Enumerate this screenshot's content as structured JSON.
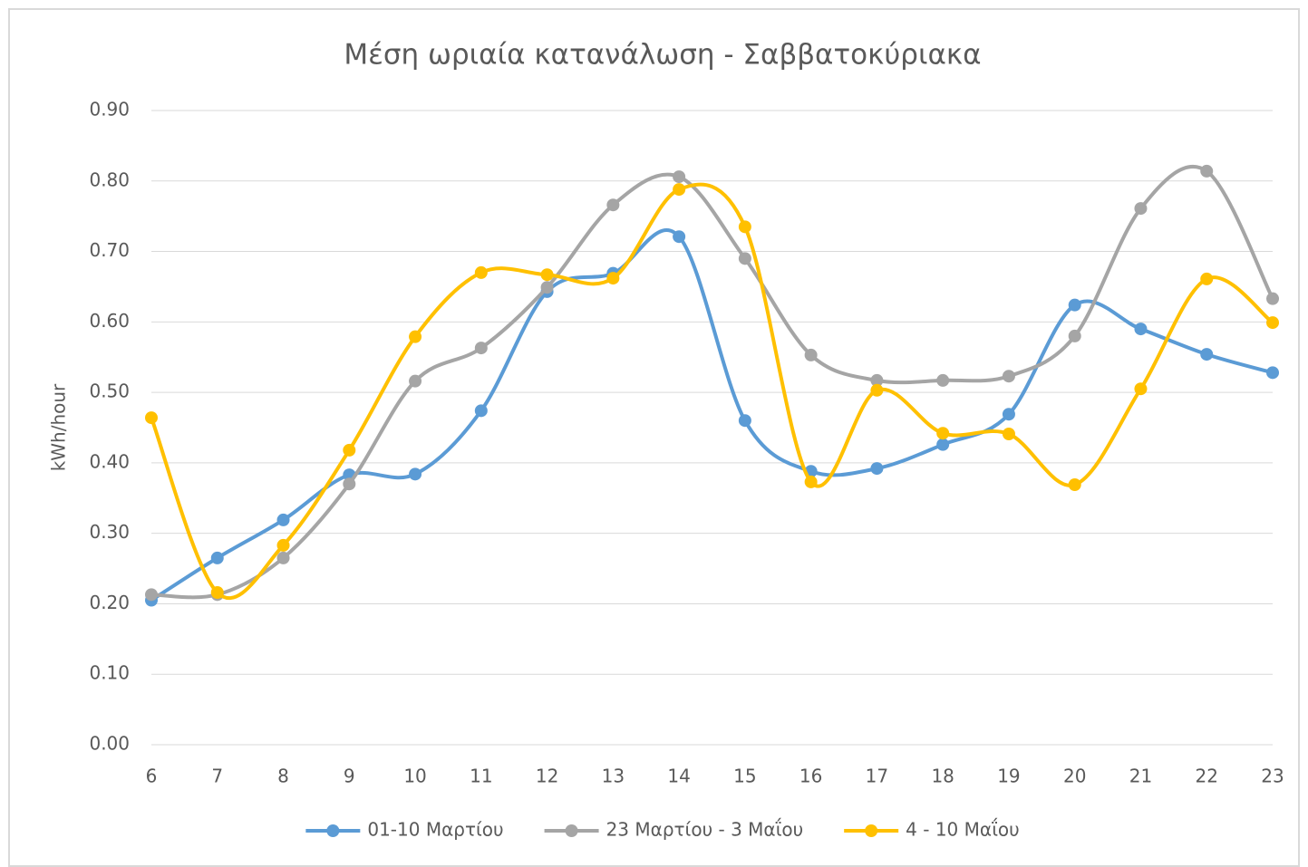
{
  "chart_data": {
    "type": "line",
    "title": "Μέση ωριαία κατανάλωση  - Σαββατοκύριακα",
    "y_label": "kWh/hour",
    "x": [
      6,
      7,
      8,
      9,
      10,
      11,
      12,
      13,
      14,
      15,
      16,
      17,
      18,
      19,
      20,
      21,
      22,
      23
    ],
    "xlim": [
      6,
      23
    ],
    "ylim": [
      0,
      0.9
    ],
    "yticks": [
      {
        "value": 0,
        "label": "0.00"
      },
      {
        "value": 0.1,
        "label": "0.10"
      },
      {
        "value": 0.2,
        "label": "0.20"
      },
      {
        "value": 0.3,
        "label": "0.30"
      },
      {
        "value": 0.4,
        "label": "0.40"
      },
      {
        "value": 0.5,
        "label": "0.50"
      },
      {
        "value": 0.6,
        "label": "0.60"
      },
      {
        "value": 0.7,
        "label": "0.70"
      },
      {
        "value": 0.8,
        "label": "0.80"
      },
      {
        "value": 0.9,
        "label": "0.90"
      }
    ],
    "grid": true,
    "smooth": true,
    "legend": "bottom",
    "series": [
      {
        "name": "01-10 Μαρτίου",
        "color": "#5b9bd5",
        "values": [
          0.205,
          0.265,
          0.319,
          0.383,
          0.384,
          0.474,
          0.643,
          0.669,
          0.721,
          0.46,
          0.388,
          0.392,
          0.426,
          0.469,
          0.624,
          0.59,
          0.554,
          0.528
        ]
      },
      {
        "name": "23 Μαρτίου - 3 Μαΐου",
        "color": "#a5a5a5",
        "values": [
          0.213,
          0.213,
          0.265,
          0.37,
          0.516,
          0.563,
          0.649,
          0.766,
          0.806,
          0.69,
          0.553,
          0.517,
          0.517,
          0.523,
          0.58,
          0.761,
          0.814,
          0.633
        ]
      },
      {
        "name": "4 - 10 Μαΐου",
        "color": "#ffc000",
        "values": [
          0.464,
          0.216,
          0.283,
          0.418,
          0.579,
          0.67,
          0.667,
          0.662,
          0.788,
          0.735,
          0.373,
          0.503,
          0.442,
          0.441,
          0.369,
          0.505,
          0.661,
          0.599
        ]
      }
    ]
  }
}
